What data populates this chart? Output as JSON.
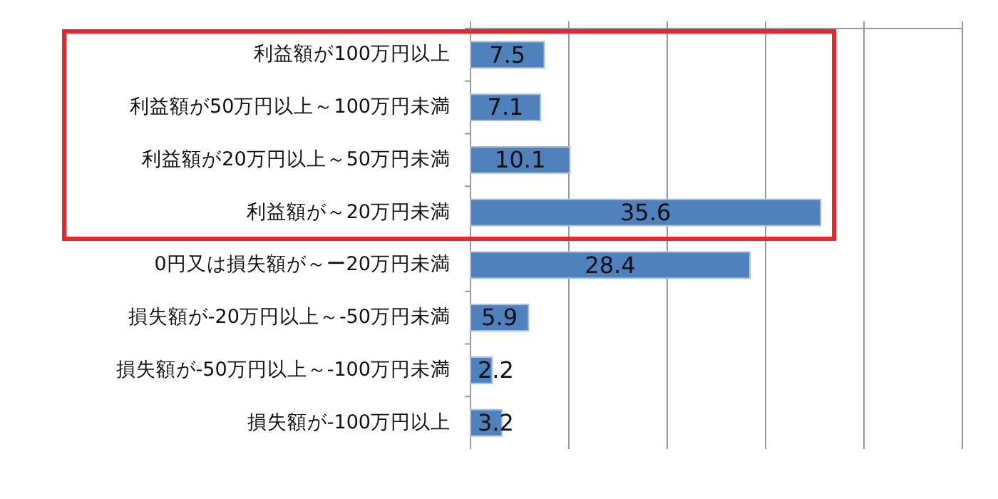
{
  "chart_data": {
    "type": "bar",
    "orientation": "horizontal",
    "categories": [
      "利益額が100万円以上",
      "利益額が50万円以上～100万円未満",
      "利益額が20万円以上～50万円未満",
      "利益額が～20万円未満",
      "0円又は損失額が～ー20万円未満",
      "損失額が-20万円以上～-50万円未満",
      "損失額が-50万円以上～-100万円未満",
      "損失額が-100万円以上"
    ],
    "values": [
      7.5,
      7.1,
      10.1,
      35.6,
      28.4,
      5.9,
      2.2,
      3.2
    ],
    "color": "#4f81bd",
    "xlim": [
      0,
      50
    ],
    "xticks": [
      {
        "value": 0,
        "label": null
      },
      {
        "value": 10,
        "label": null
      },
      {
        "value": 20,
        "label": null
      },
      {
        "value": 30,
        "label": null
      },
      {
        "value": 40,
        "label": null
      },
      {
        "value": 50,
        "label": null
      }
    ],
    "grid": "x",
    "tick_labels": "y",
    "data_labels": true
  }
}
